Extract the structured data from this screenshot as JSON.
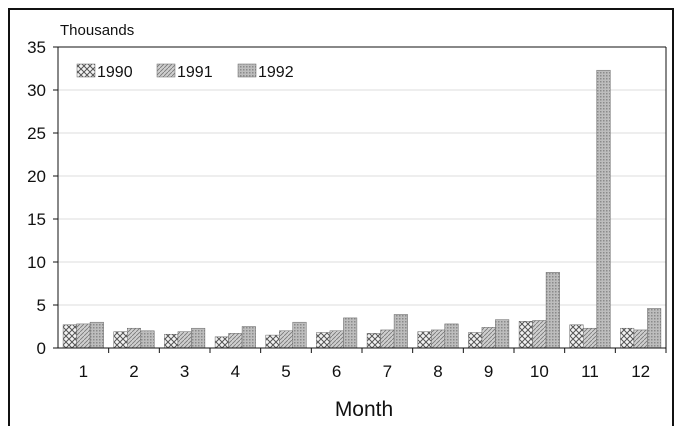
{
  "chart_data": {
    "type": "bar",
    "title": "",
    "unit_label": "Thousands",
    "xlabel": "Month",
    "ylabel": "",
    "ylim": [
      0,
      35
    ],
    "yticks": [
      0,
      5,
      10,
      15,
      20,
      25,
      30,
      35
    ],
    "grid": true,
    "legend_position": "top-left",
    "categories": [
      "1",
      "2",
      "3",
      "4",
      "5",
      "6",
      "7",
      "8",
      "9",
      "10",
      "11",
      "12"
    ],
    "series": [
      {
        "name": "1990",
        "values": [
          2.7,
          1.9,
          1.6,
          1.3,
          1.5,
          1.8,
          1.7,
          1.9,
          1.8,
          3.1,
          2.7,
          2.3
        ]
      },
      {
        "name": "1991",
        "values": [
          2.8,
          2.3,
          1.9,
          1.7,
          2.0,
          2.0,
          2.1,
          2.1,
          2.4,
          3.2,
          2.3,
          2.1
        ]
      },
      {
        "name": "1992",
        "values": [
          3.0,
          2.0,
          2.3,
          2.5,
          3.0,
          3.5,
          3.9,
          2.8,
          3.3,
          8.8,
          32.3,
          4.6
        ]
      }
    ]
  }
}
